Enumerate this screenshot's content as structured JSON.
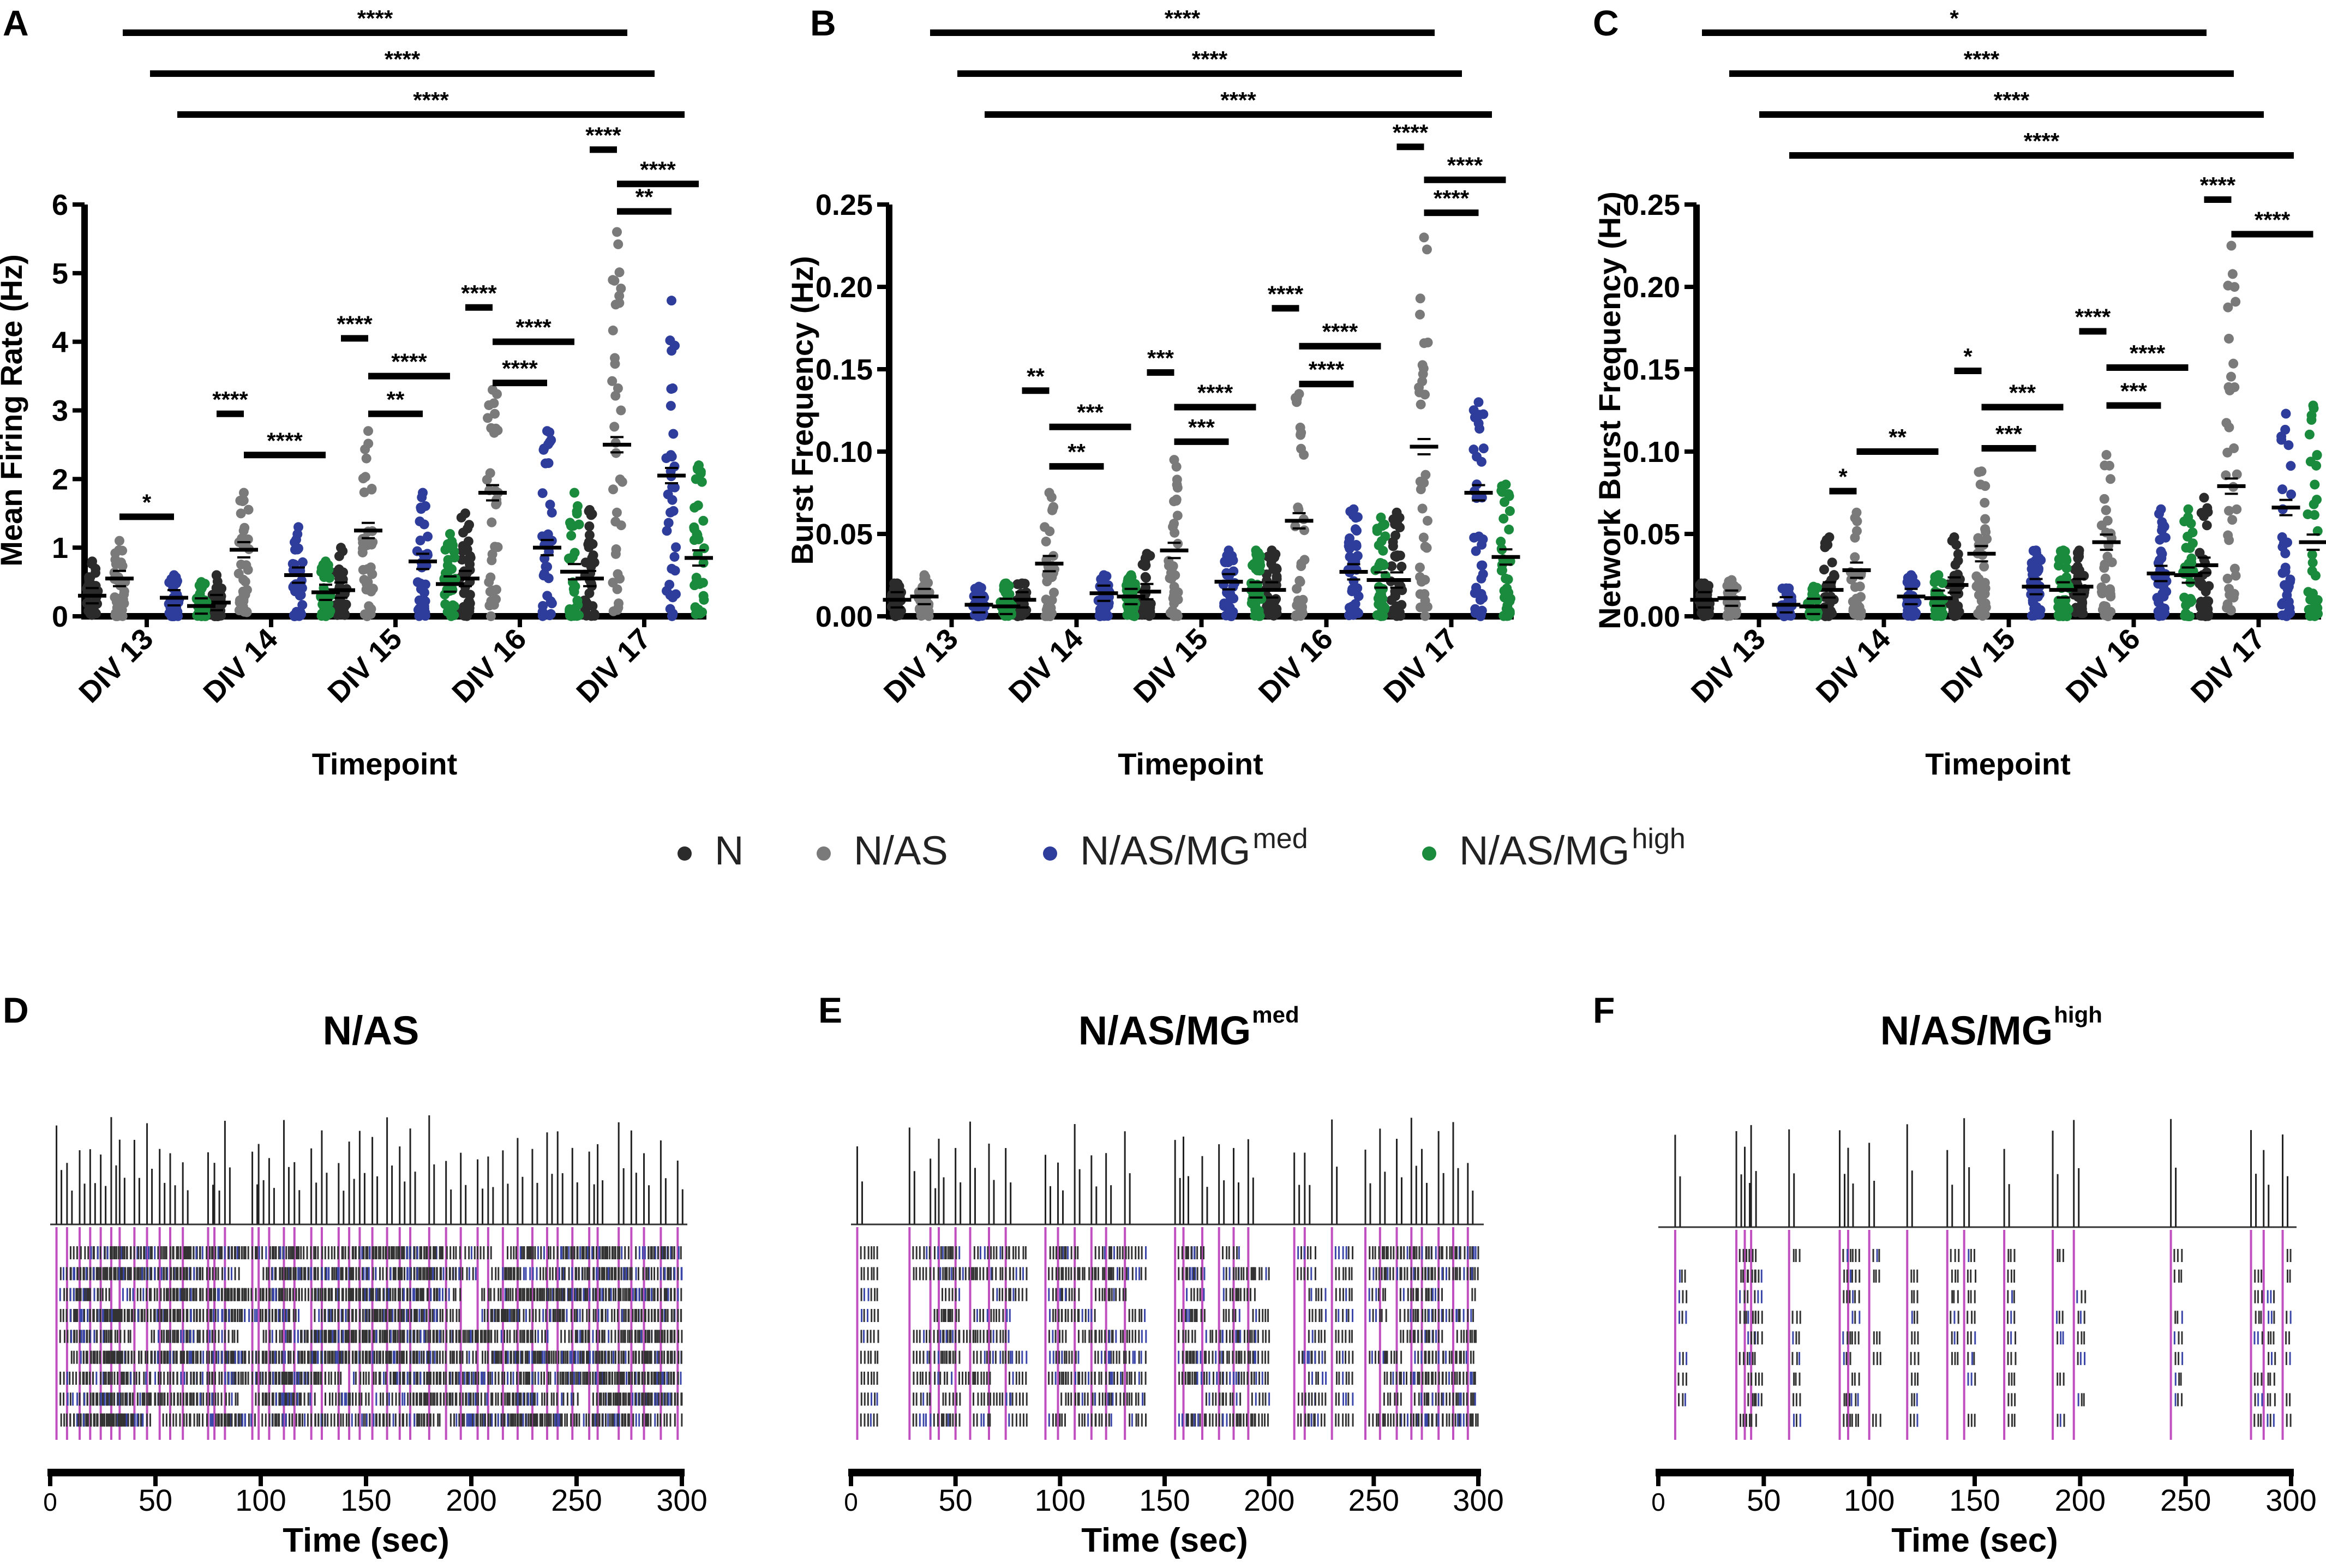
{
  "legend": {
    "groups": [
      {
        "name": "N",
        "base": "N",
        "sup": "",
        "color": "#2b2b2b"
      },
      {
        "name": "N/AS",
        "base": "N/AS",
        "sup": "",
        "color": "#7a7a7a"
      },
      {
        "name": "N/AS/MGmed",
        "base": "N/AS/MG",
        "sup": "med",
        "color": "#2e3d9b"
      },
      {
        "name": "N/AS/MGhigh",
        "base": "N/AS/MG",
        "sup": "high",
        "color": "#1a8a3c"
      }
    ]
  },
  "chart_data": [
    {
      "panel": "A",
      "type": "scatter",
      "ylabel": "Mean Firing Rate (Hz)",
      "xlabel": "Timepoint",
      "categories": [
        "DIV 13",
        "DIV 14",
        "DIV 15",
        "DIV 16",
        "DIV 17"
      ],
      "ylim": [
        0,
        6
      ],
      "yticks": [
        0,
        1,
        2,
        3,
        4,
        5,
        6
      ],
      "series": [
        {
          "name": "N",
          "means": [
            0.3,
            0.2,
            0.38,
            0.55,
            0.55
          ],
          "maxes": [
            0.8,
            0.6,
            1.0,
            1.5,
            1.55
          ]
        },
        {
          "name": "N/AS",
          "means": [
            0.55,
            0.97,
            1.25,
            1.8,
            2.5
          ],
          "maxes": [
            1.1,
            1.8,
            2.7,
            3.3,
            5.6
          ]
        },
        {
          "name": "N/AS/MGmed",
          "means": [
            0.27,
            0.6,
            0.8,
            1.0,
            2.05
          ],
          "maxes": [
            0.6,
            1.3,
            1.8,
            2.7,
            4.6
          ]
        },
        {
          "name": "N/AS/MGhigh",
          "means": [
            0.15,
            0.35,
            0.47,
            0.65,
            0.85
          ],
          "maxes": [
            0.5,
            0.8,
            1.2,
            1.8,
            2.2
          ]
        }
      ],
      "sig_top": [
        {
          "label": "****",
          "from": 0,
          "to": 4
        },
        {
          "label": "****",
          "from": 0,
          "to": 4
        },
        {
          "label": "****",
          "from": 1,
          "to": 4
        }
      ],
      "sig_local": [
        {
          "cat": 0,
          "pair": "1-2",
          "label": "*",
          "y": 1.45
        },
        {
          "cat": 1,
          "pair": "0-1",
          "label": "****",
          "y": 2.95
        },
        {
          "cat": 1,
          "pair": "1-3",
          "label": "****",
          "y": 2.35
        },
        {
          "cat": 2,
          "pair": "0-1",
          "label": "****",
          "y": 4.05
        },
        {
          "cat": 2,
          "pair": "1-3",
          "label": "****",
          "y": 3.5
        },
        {
          "cat": 2,
          "pair": "1-2",
          "label": "**",
          "y": 2.95
        },
        {
          "cat": 3,
          "pair": "0-1",
          "label": "****",
          "y": 4.5
        },
        {
          "cat": 3,
          "pair": "1-3",
          "label": "****",
          "y": 4.0
        },
        {
          "cat": 3,
          "pair": "1-2",
          "label": "****",
          "y": 3.4
        },
        {
          "cat": 4,
          "pair": "0-1",
          "label": "****",
          "y": 6.8
        },
        {
          "cat": 4,
          "pair": "1-3",
          "label": "****",
          "y": 6.3
        },
        {
          "cat": 4,
          "pair": "1-2",
          "label": "**",
          "y": 5.9
        }
      ]
    },
    {
      "panel": "B",
      "type": "scatter",
      "ylabel": "Burst Frequency (Hz)",
      "xlabel": "Timepoint",
      "categories": [
        "DIV 13",
        "DIV 14",
        "DIV 15",
        "DIV 16",
        "DIV 17"
      ],
      "ylim": [
        0,
        0.25
      ],
      "yticks": [
        "0.00",
        "0.05",
        "0.10",
        "0.15",
        "0.20",
        "0.25"
      ],
      "series": [
        {
          "name": "N",
          "means": [
            0.01,
            0.01,
            0.015,
            0.016,
            0.022
          ],
          "maxes": [
            0.02,
            0.02,
            0.038,
            0.04,
            0.063
          ]
        },
        {
          "name": "N/AS",
          "means": [
            0.012,
            0.032,
            0.04,
            0.058,
            0.103
          ],
          "maxes": [
            0.025,
            0.075,
            0.095,
            0.135,
            0.23
          ]
        },
        {
          "name": "N/AS/MGmed",
          "means": [
            0.007,
            0.014,
            0.021,
            0.027,
            0.075
          ],
          "maxes": [
            0.018,
            0.025,
            0.04,
            0.065,
            0.13
          ]
        },
        {
          "name": "N/AS/MGhigh",
          "means": [
            0.006,
            0.012,
            0.016,
            0.022,
            0.036
          ],
          "maxes": [
            0.02,
            0.025,
            0.04,
            0.06,
            0.08
          ]
        }
      ],
      "sig_top": [
        {
          "label": "****",
          "from": 0,
          "to": 4
        },
        {
          "label": "****",
          "from": 0,
          "to": 4
        },
        {
          "label": "****",
          "from": 1,
          "to": 4
        }
      ],
      "sig_local": [
        {
          "cat": 1,
          "pair": "0-1",
          "label": "**",
          "y": 0.137
        },
        {
          "cat": 1,
          "pair": "1-3",
          "label": "***",
          "y": 0.115
        },
        {
          "cat": 1,
          "pair": "1-2",
          "label": "**",
          "y": 0.091
        },
        {
          "cat": 2,
          "pair": "0-1",
          "label": "***",
          "y": 0.148
        },
        {
          "cat": 2,
          "pair": "1-3",
          "label": "****",
          "y": 0.127
        },
        {
          "cat": 2,
          "pair": "1-2",
          "label": "***",
          "y": 0.106
        },
        {
          "cat": 3,
          "pair": "0-1",
          "label": "****",
          "y": 0.187
        },
        {
          "cat": 3,
          "pair": "1-3",
          "label": "****",
          "y": 0.164
        },
        {
          "cat": 3,
          "pair": "1-2",
          "label": "****",
          "y": 0.141
        },
        {
          "cat": 4,
          "pair": "0-1",
          "label": "****",
          "y": 0.285
        },
        {
          "cat": 4,
          "pair": "1-3",
          "label": "****",
          "y": 0.265
        },
        {
          "cat": 4,
          "pair": "1-2",
          "label": "****",
          "y": 0.245
        }
      ]
    },
    {
      "panel": "C",
      "type": "scatter",
      "ylabel": "Network Burst Frequency (Hz)",
      "xlabel": "Timepoint",
      "categories": [
        "DIV 13",
        "DIV 14",
        "DIV 15",
        "DIV 16",
        "DIV 17"
      ],
      "ylim": [
        0,
        0.25
      ],
      "yticks": [
        "0.00",
        "0.05",
        "0.10",
        "0.15",
        "0.20",
        "0.25"
      ],
      "series": [
        {
          "name": "N",
          "means": [
            0.01,
            0.016,
            0.019,
            0.018,
            0.031
          ],
          "maxes": [
            0.02,
            0.048,
            0.048,
            0.04,
            0.072
          ]
        },
        {
          "name": "N/AS",
          "means": [
            0.011,
            0.028,
            0.038,
            0.045,
            0.079
          ],
          "maxes": [
            0.022,
            0.063,
            0.088,
            0.098,
            0.225
          ]
        },
        {
          "name": "N/AS/MGmed",
          "means": [
            0.007,
            0.012,
            0.018,
            0.026,
            0.066
          ],
          "maxes": [
            0.017,
            0.025,
            0.04,
            0.065,
            0.123
          ]
        },
        {
          "name": "N/AS/MGhigh",
          "means": [
            0.006,
            0.011,
            0.016,
            0.025,
            0.045
          ],
          "maxes": [
            0.018,
            0.025,
            0.04,
            0.065,
            0.128
          ]
        }
      ],
      "sig_top": [
        {
          "label": "*",
          "from": 0,
          "to": 4
        },
        {
          "label": "****",
          "from": 0,
          "to": 4
        },
        {
          "label": "****",
          "from": 0,
          "to": 4
        },
        {
          "label": "****",
          "from": 1,
          "to": 4
        }
      ],
      "sig_local": [
        {
          "cat": 1,
          "pair": "1-3",
          "label": "**",
          "y": 0.1
        },
        {
          "cat": 1,
          "pair": "0-1",
          "label": "*",
          "y": 0.076
        },
        {
          "cat": 2,
          "pair": "0-1",
          "label": "*",
          "y": 0.149
        },
        {
          "cat": 2,
          "pair": "1-3",
          "label": "***",
          "y": 0.127
        },
        {
          "cat": 2,
          "pair": "1-2",
          "label": "***",
          "y": 0.102
        },
        {
          "cat": 3,
          "pair": "0-1",
          "label": "****",
          "y": 0.173
        },
        {
          "cat": 3,
          "pair": "1-3",
          "label": "****",
          "y": 0.151
        },
        {
          "cat": 3,
          "pair": "1-2",
          "label": "***",
          "y": 0.128
        },
        {
          "cat": 4,
          "pair": "0-1",
          "label": "****",
          "y": 0.253
        },
        {
          "cat": 4,
          "pair": "1-3",
          "label": "****",
          "y": 0.232
        }
      ]
    },
    {
      "panel": "D",
      "type": "raster",
      "title": "N/AS",
      "title_sup": "",
      "xlabel": "Time (sec)",
      "xlim": [
        0,
        300
      ],
      "xticks": [
        0,
        50,
        100,
        150,
        200,
        250,
        300
      ],
      "density": "high",
      "network_bursts_sec": [
        3,
        8,
        14,
        19,
        24,
        29,
        33,
        40,
        46,
        52,
        57,
        63,
        75,
        78,
        83,
        96,
        99,
        104,
        111,
        116,
        124,
        129,
        137,
        142,
        147,
        153,
        160,
        166,
        171,
        180,
        188,
        195,
        203,
        208,
        215,
        222,
        229,
        236,
        241,
        248,
        256,
        260,
        270,
        276,
        282,
        290,
        298
      ]
    },
    {
      "panel": "E",
      "type": "raster",
      "title": "N/AS/MG",
      "title_sup": "med",
      "xlabel": "Time (sec)",
      "xlim": [
        0,
        300
      ],
      "xticks": [
        0,
        50,
        100,
        150,
        200,
        250,
        300
      ],
      "density": "medium",
      "network_bursts_sec": [
        3,
        28,
        38,
        42,
        50,
        57,
        66,
        74,
        93,
        99,
        107,
        115,
        122,
        131,
        155,
        159,
        168,
        176,
        183,
        190,
        212,
        217,
        230,
        246,
        253,
        261,
        268,
        273,
        281,
        288,
        295
      ]
    },
    {
      "panel": "F",
      "type": "raster",
      "title": "N/AS/MG",
      "title_sup": "high",
      "xlabel": "Time (sec)",
      "xlim": [
        0,
        300
      ],
      "xticks": [
        0,
        50,
        100,
        150,
        200,
        250,
        300
      ],
      "density": "low",
      "network_bursts_sec": [
        8,
        37,
        41,
        44,
        62,
        86,
        90,
        100,
        118,
        137,
        145,
        164,
        187,
        197,
        243,
        281,
        287,
        296
      ]
    }
  ]
}
